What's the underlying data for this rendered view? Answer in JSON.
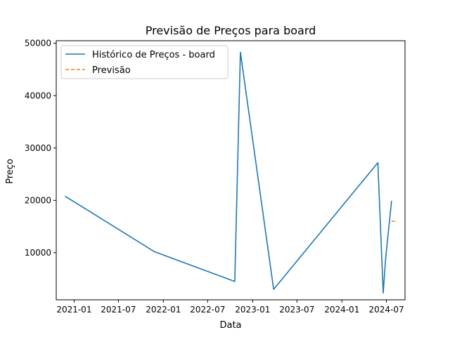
{
  "chart_data": {
    "type": "line",
    "title": "Previsão de Preços para board",
    "xlabel": "Data",
    "ylabel": "Preço",
    "xlim": [
      "2020-10-20",
      "2024-09-15"
    ],
    "ylim": [
      1000,
      50500
    ],
    "x_ticks": [
      {
        "date": "2021-01-01",
        "label": "2021-01"
      },
      {
        "date": "2021-07-01",
        "label": "2021-07"
      },
      {
        "date": "2022-01-01",
        "label": "2022-01"
      },
      {
        "date": "2022-07-01",
        "label": "2022-07"
      },
      {
        "date": "2023-01-01",
        "label": "2023-01"
      },
      {
        "date": "2023-07-01",
        "label": "2023-07"
      },
      {
        "date": "2024-01-01",
        "label": "2024-01"
      },
      {
        "date": "2024-07-01",
        "label": "2024-07"
      }
    ],
    "y_ticks": [
      {
        "value": 10000,
        "label": "10000"
      },
      {
        "value": 20000,
        "label": "20000"
      },
      {
        "value": 30000,
        "label": "30000"
      },
      {
        "value": 40000,
        "label": "40000"
      },
      {
        "value": 50000,
        "label": "50000"
      }
    ],
    "grid": false,
    "legend_position": "top-left",
    "series": [
      {
        "name": "Histórico de Preços - board",
        "color": "#1f77b4",
        "style": "solid",
        "points": [
          {
            "x": "2020-11-25",
            "y": 20800
          },
          {
            "x": "2021-11-25",
            "y": 10200
          },
          {
            "x": "2022-10-20",
            "y": 4500
          },
          {
            "x": "2022-11-12",
            "y": 48300
          },
          {
            "x": "2023-03-28",
            "y": 3000
          },
          {
            "x": "2024-05-27",
            "y": 27200
          },
          {
            "x": "2024-06-18",
            "y": 2300
          },
          {
            "x": "2024-06-28",
            "y": 9000
          },
          {
            "x": "2024-07-22",
            "y": 19900
          }
        ]
      },
      {
        "name": "Previsão",
        "color": "#ff7f0e",
        "style": "dashed",
        "points": [
          {
            "x": "2024-07-22",
            "y": 16000
          },
          {
            "x": "2024-08-15",
            "y": 16000
          }
        ]
      }
    ]
  }
}
